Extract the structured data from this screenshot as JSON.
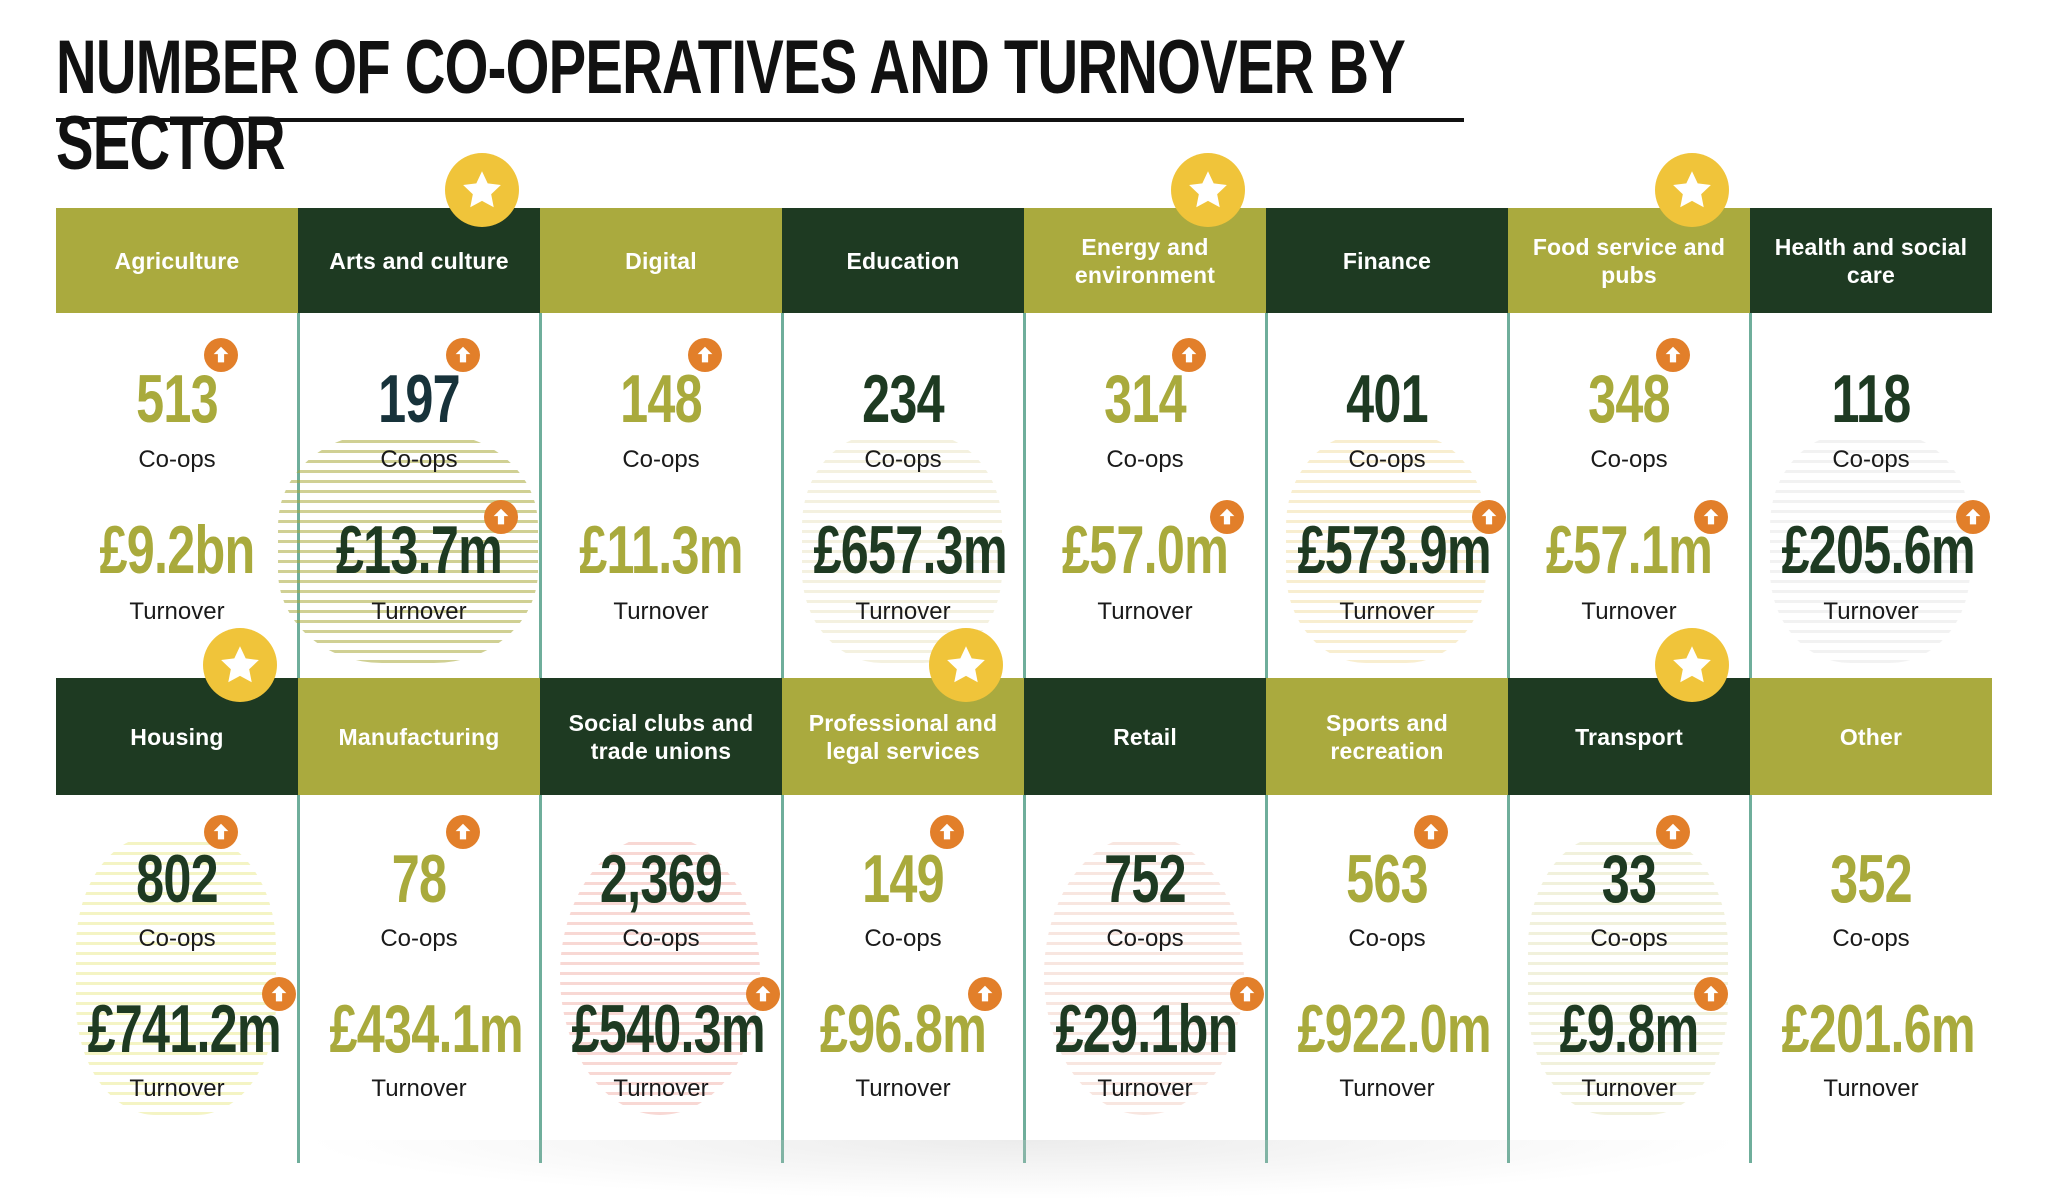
{
  "title": "NUMBER OF CO-OPERATIVES AND TURNOVER BY SECTOR",
  "colors": {
    "olive": "#aaaa3e",
    "dark": "#1e3a22",
    "star": "#f0c43a",
    "up_arrow": "#e27f2a",
    "divider": "#6fae9b"
  },
  "icons": {
    "star": "star-icon",
    "increase": "up-arrow-icon"
  },
  "chart_data": {
    "type": "table",
    "title": "NUMBER OF CO-OPERATIVES AND TURNOVER BY SECTOR",
    "count_label": "Co-ops",
    "turnover_label": "Turnover",
    "sectors": [
      {
        "name": "Agriculture",
        "coops": "513",
        "turnover": "£9.2bn",
        "highlighted": false,
        "coops_up": true,
        "turnover_up": false
      },
      {
        "name": "Arts and culture",
        "coops": "197",
        "turnover": "£13.7m",
        "highlighted": true,
        "coops_up": true,
        "turnover_up": true
      },
      {
        "name": "Digital",
        "coops": "148",
        "turnover": "£11.3m",
        "highlighted": false,
        "coops_up": true,
        "turnover_up": false
      },
      {
        "name": "Education",
        "coops": "234",
        "turnover": "£657.3m",
        "highlighted": false,
        "coops_up": false,
        "turnover_up": false
      },
      {
        "name": "Energy and environment",
        "coops": "314",
        "turnover": "£57.0m",
        "highlighted": true,
        "coops_up": true,
        "turnover_up": true
      },
      {
        "name": "Finance",
        "coops": "401",
        "turnover": "£573.9m",
        "highlighted": false,
        "coops_up": false,
        "turnover_up": true
      },
      {
        "name": "Food service and pubs",
        "coops": "348",
        "turnover": "£57.1m",
        "highlighted": true,
        "coops_up": true,
        "turnover_up": true
      },
      {
        "name": "Health and social care",
        "coops": "118",
        "turnover": "£205.6m",
        "highlighted": false,
        "coops_up": false,
        "turnover_up": true
      },
      {
        "name": "Housing",
        "coops": "802",
        "turnover": "£741.2m",
        "highlighted": true,
        "coops_up": true,
        "turnover_up": true
      },
      {
        "name": "Manufacturing",
        "coops": "78",
        "turnover": "£434.1m",
        "highlighted": false,
        "coops_up": true,
        "turnover_up": false
      },
      {
        "name": "Social clubs and trade unions",
        "coops": "2,369",
        "turnover": "£540.3m",
        "highlighted": false,
        "coops_up": false,
        "turnover_up": true
      },
      {
        "name": "Professional and legal services",
        "coops": "149",
        "turnover": "£96.8m",
        "highlighted": true,
        "coops_up": true,
        "turnover_up": true
      },
      {
        "name": "Retail",
        "coops": "752",
        "turnover": "£29.1bn",
        "highlighted": false,
        "coops_up": false,
        "turnover_up": true
      },
      {
        "name": "Sports and recreation",
        "coops": "563",
        "turnover": "£922.0m",
        "highlighted": false,
        "coops_up": true,
        "turnover_up": false
      },
      {
        "name": "Transport",
        "coops": "33",
        "turnover": "£9.8m",
        "highlighted": true,
        "coops_up": true,
        "turnover_up": true
      },
      {
        "name": "Other",
        "coops": "352",
        "turnover": "£201.6m",
        "highlighted": false,
        "coops_up": false,
        "turnover_up": false
      }
    ]
  }
}
